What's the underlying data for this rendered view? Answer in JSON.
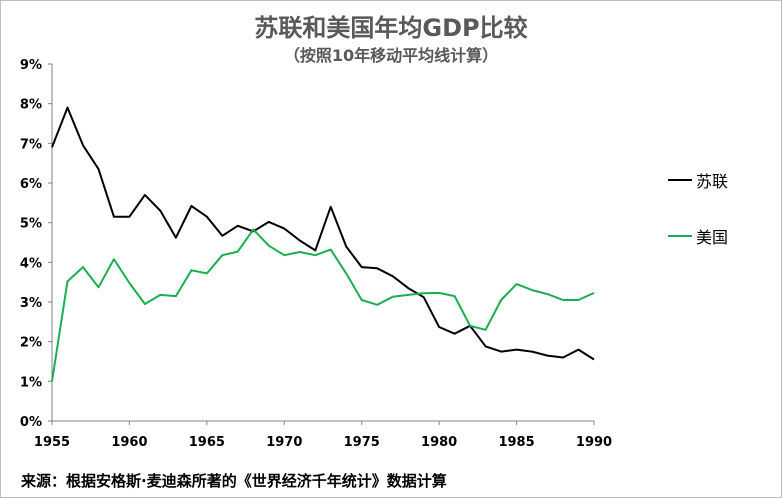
{
  "chart_data": {
    "type": "line",
    "title": "苏联和美国年均GDP比较",
    "subtitle": "（按照10年移动平均线计算）",
    "xlim": [
      1955,
      1990
    ],
    "ylim": [
      0,
      9
    ],
    "x_ticks": [
      "1955",
      "1960",
      "1965",
      "1970",
      "1975",
      "1980",
      "1985",
      "1990"
    ],
    "y_ticks": [
      "0%",
      "1%",
      "2%",
      "3%",
      "4%",
      "5%",
      "6%",
      "7%",
      "8%",
      "9%"
    ],
    "grid": false,
    "legend_position": "right",
    "x": [
      1955,
      1956,
      1957,
      1958,
      1959,
      1960,
      1961,
      1962,
      1963,
      1964,
      1965,
      1966,
      1967,
      1968,
      1969,
      1970,
      1971,
      1972,
      1973,
      1974,
      1975,
      1976,
      1977,
      1978,
      1979,
      1980,
      1981,
      1982,
      1983,
      1984,
      1985,
      1986,
      1987,
      1988,
      1989,
      1990
    ],
    "series": [
      {
        "name": "苏联",
        "color": "#000000",
        "values": [
          6.9,
          7.9,
          6.95,
          6.35,
          5.15,
          5.15,
          5.7,
          5.3,
          4.62,
          5.42,
          5.15,
          4.67,
          4.92,
          4.78,
          5.02,
          4.85,
          4.55,
          4.3,
          5.4,
          4.4,
          3.88,
          3.85,
          3.65,
          3.35,
          3.12,
          2.37,
          2.2,
          2.4,
          1.88,
          1.75,
          1.8,
          1.75,
          1.65,
          1.6,
          1.8,
          1.55
        ]
      },
      {
        "name": "美国",
        "color": "#1aae50",
        "values": [
          1.0,
          3.52,
          3.88,
          3.37,
          4.08,
          3.48,
          2.95,
          3.18,
          3.15,
          3.8,
          3.72,
          4.18,
          4.27,
          4.83,
          4.42,
          4.18,
          4.26,
          4.18,
          4.32,
          3.72,
          3.05,
          2.93,
          3.13,
          3.18,
          3.22,
          3.23,
          3.15,
          2.4,
          2.3,
          3.05,
          3.45,
          3.3,
          3.2,
          3.05,
          3.05,
          3.23
        ]
      }
    ]
  },
  "footer": {
    "source": "来源：根据安格斯·麦迪森所著的《世界经济千年统计》数据计算"
  }
}
